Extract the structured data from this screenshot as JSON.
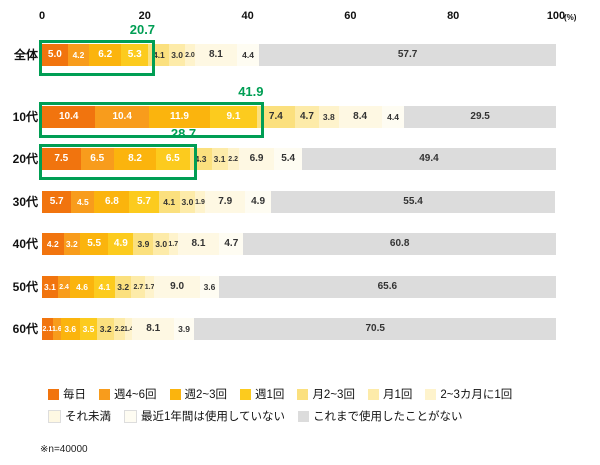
{
  "footnote": "※n=40000",
  "chart_data": {
    "type": "bar",
    "orientation": "horizontal",
    "stacked": true,
    "unit": "%",
    "axis_unit_label": "(%)",
    "xlim": [
      0,
      100
    ],
    "xticks": [
      0,
      20,
      40,
      60,
      80,
      100
    ],
    "grid": false,
    "legend_position": "bottom",
    "categories": [
      "全体",
      "10代",
      "20代",
      "30代",
      "40代",
      "50代",
      "60代"
    ],
    "legend": [
      "毎日",
      "週4~6回",
      "週2~3回",
      "週1回",
      "月2~3回",
      "月1回",
      "2~3カ月に1回",
      "それ未満",
      "最近1年間は使用していない",
      "これまで使用したことがない"
    ],
    "legend_rows": [
      7,
      3
    ],
    "colors": [
      "#F1740E",
      "#F89C1C",
      "#FBB40D",
      "#FCCB1E",
      "#FBE07E",
      "#FDEBA9",
      "#FEF3CC",
      "#FEF8E3",
      "#FEFCF2",
      "#DCDCDC"
    ],
    "rows": [
      {
        "label": "全体",
        "values": [
          5.0,
          4.2,
          6.2,
          5.3,
          4.1,
          3.0,
          2.0,
          8.1,
          4.4,
          57.7
        ]
      },
      {
        "label": "10代",
        "values": [
          10.4,
          10.4,
          11.9,
          9.1,
          7.4,
          4.7,
          3.8,
          8.4,
          4.4,
          29.5
        ]
      },
      {
        "label": "20代",
        "values": [
          7.5,
          6.5,
          8.2,
          6.5,
          4.3,
          3.1,
          2.2,
          6.9,
          5.4,
          49.4
        ]
      },
      {
        "label": "30代",
        "values": [
          5.7,
          4.5,
          6.8,
          5.7,
          4.1,
          3.0,
          1.9,
          7.9,
          4.9,
          55.4
        ]
      },
      {
        "label": "40代",
        "values": [
          4.2,
          3.2,
          5.5,
          4.9,
          3.9,
          3.0,
          1.7,
          8.1,
          4.7,
          60.8
        ]
      },
      {
        "label": "50代",
        "values": [
          3.1,
          2.4,
          4.6,
          4.1,
          3.2,
          2.7,
          1.7,
          9.0,
          3.6,
          65.6
        ]
      },
      {
        "label": "60代",
        "values": [
          2.1,
          1.6,
          3.6,
          3.5,
          3.2,
          2.2,
          1.4,
          8.1,
          3.9,
          70.5
        ]
      }
    ],
    "highlights": [
      {
        "row": 0,
        "span": 4,
        "label": "20.7"
      },
      {
        "row": 1,
        "span": 4,
        "label": "41.9"
      },
      {
        "row": 2,
        "span": 4,
        "label": "28.7"
      }
    ],
    "highlight_color": "#009E54"
  }
}
